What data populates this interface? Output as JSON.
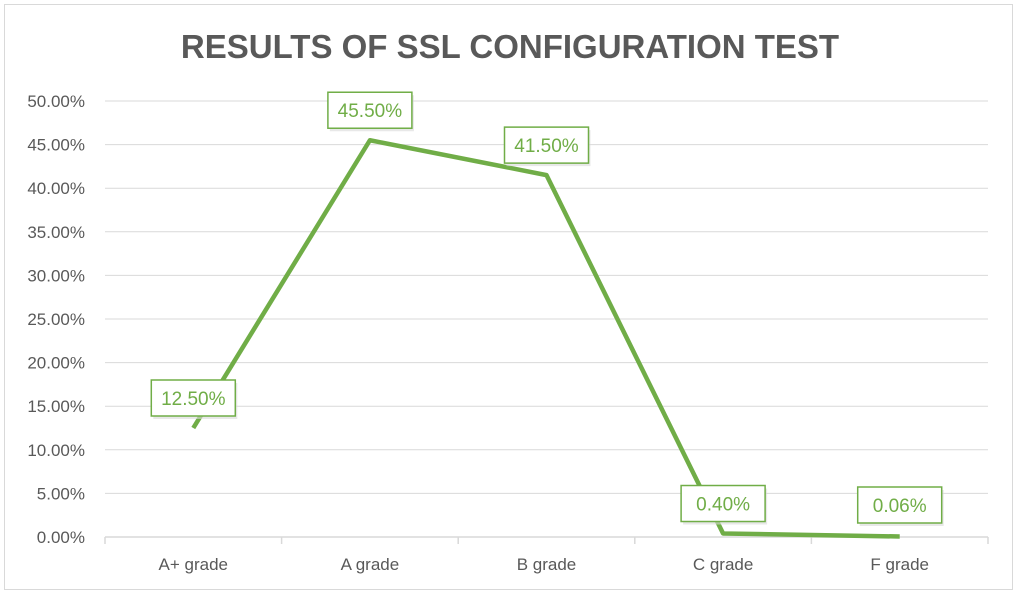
{
  "chart_data": {
    "type": "line",
    "title": "RESULTS OF SSL CONFIGURATION TEST",
    "categories": [
      "A+ grade",
      "A grade",
      "B grade",
      "C grade",
      "F grade"
    ],
    "series": [
      {
        "values": [
          12.5,
          45.5,
          41.5,
          0.4,
          0.06
        ]
      }
    ],
    "data_labels": [
      "12.50%",
      "45.50%",
      "41.50%",
      "0.40%",
      "0.06%"
    ],
    "y_ticks": [
      "0.00%",
      "5.00%",
      "10.00%",
      "15.00%",
      "20.00%",
      "25.00%",
      "30.00%",
      "35.00%",
      "40.00%",
      "45.00%",
      "50.00%"
    ],
    "ylim": [
      0,
      50
    ],
    "grid": true,
    "legend": "none",
    "colors": {
      "line": "#70ad47",
      "grid": "#d9d9d9",
      "text": "#595959"
    }
  }
}
